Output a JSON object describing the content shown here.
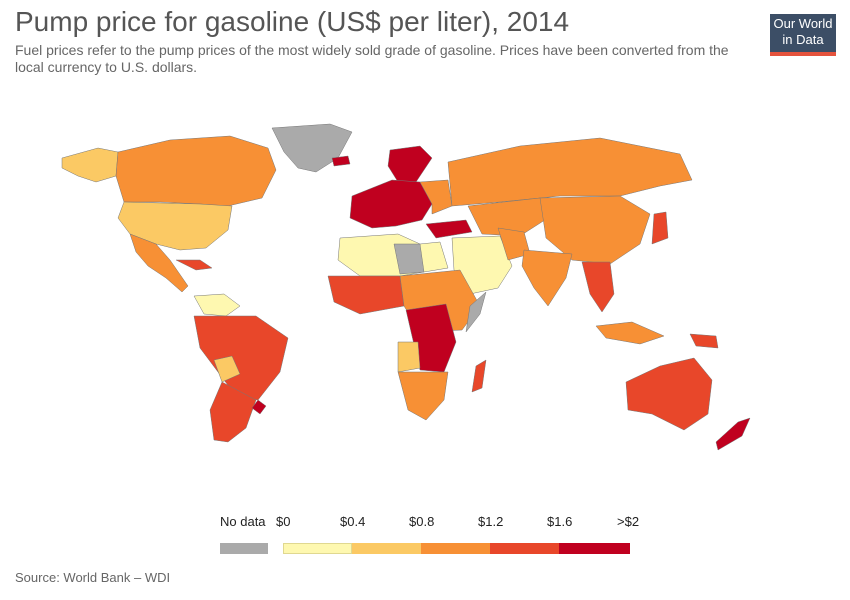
{
  "title": "Pump price for gasoline (US$ per liter), 2014",
  "subtitle": "Fuel prices refer to the pump prices of the most widely sold grade of gasoline. Prices have been converted from the local currency to U.S. dollars.",
  "logo": {
    "line1": "Our World",
    "line2": "in Data"
  },
  "legend": {
    "no_data_label": "No data",
    "tick_labels": [
      "$0",
      "$0.4",
      "$0.8",
      "$1.2",
      "$1.6",
      ">$2"
    ],
    "colors": {
      "no_data": "#aaaaaa",
      "bins": [
        "#fef8b0",
        "#fbc964",
        "#f79035",
        "#e8472a",
        "#c0001f"
      ]
    }
  },
  "source": "Source: World Bank – WDI"
}
